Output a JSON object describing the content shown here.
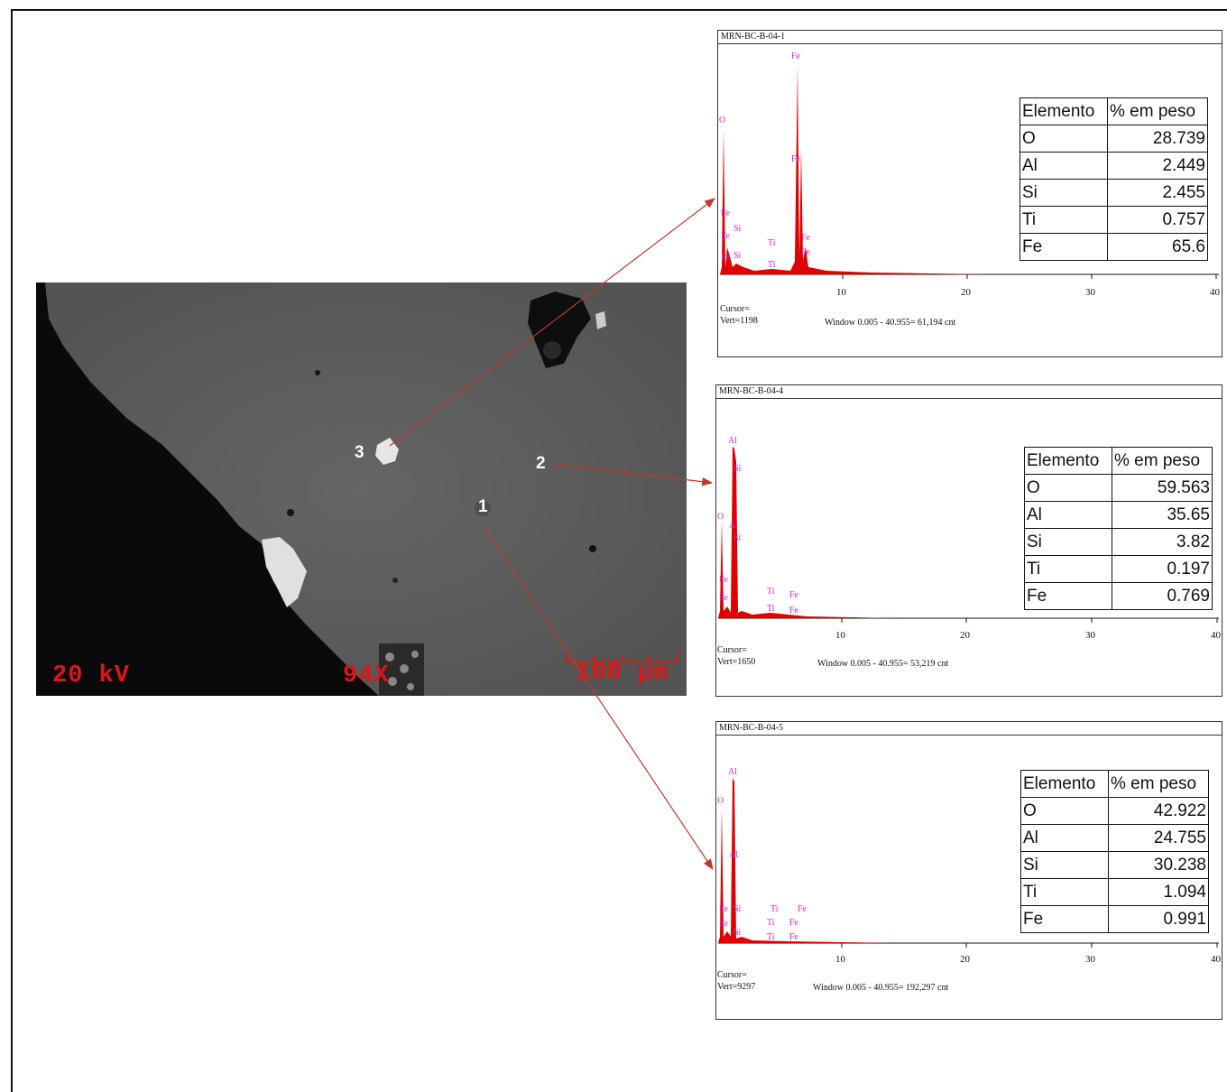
{
  "sem_image": {
    "voltage_label": "20 kV",
    "magnification_label": "94X",
    "scale_label": "100 μm",
    "points": [
      "1",
      "2",
      "3"
    ]
  },
  "colors": {
    "spectrum_fill": "#e00000",
    "peak_label": "#e020d0",
    "overlay_text": "#e01515",
    "arrow": "#c0392b"
  },
  "spectra": [
    {
      "title": "MRN-BC-B-04-1",
      "cursor": "Cursor=",
      "vert": "Vert=1198",
      "window": "Window 0.005 - 40.955=  61,194 cnt",
      "x_ticks": [
        "10",
        "20",
        "30",
        "40"
      ],
      "peaks": [
        "O",
        "Fe",
        "Fe",
        "Fe",
        "Fe",
        "Si",
        "Si",
        "Ti",
        "Ti",
        "Fe",
        "Fe",
        "Fe"
      ],
      "table": {
        "headers": [
          "Elemento",
          "% em peso"
        ],
        "rows": [
          [
            "O",
            "28.739"
          ],
          [
            "Al",
            "2.449"
          ],
          [
            "Si",
            "2.455"
          ],
          [
            "Ti",
            "0.757"
          ],
          [
            "Fe",
            "65.6"
          ]
        ]
      }
    },
    {
      "title": "MRN-BC-B-04-4",
      "cursor": "Cursor=",
      "vert": "Vert=1650",
      "window": "Window 0.005 - 40.955=  53,219 cnt",
      "x_ticks": [
        "10",
        "20",
        "30",
        "40"
      ],
      "peaks": [
        "Al",
        "Si",
        "O",
        "Al",
        "Si",
        "Fe",
        "Fe",
        "Ti",
        "Fe",
        "Ti",
        "Fe"
      ],
      "table": {
        "headers": [
          "Elemento",
          "% em peso"
        ],
        "rows": [
          [
            "O",
            "59.563"
          ],
          [
            "Al",
            "35.65"
          ],
          [
            "Si",
            "3.82"
          ],
          [
            "Ti",
            "0.197"
          ],
          [
            "Fe",
            "0.769"
          ]
        ]
      }
    },
    {
      "title": "MRN-BC-B-04-5",
      "cursor": "Cursor=",
      "vert": "Vert=9297",
      "window": "Window 0.005 - 40.955=  192,297 cnt",
      "x_ticks": [
        "10",
        "20",
        "30",
        "40"
      ],
      "peaks": [
        "Al",
        "O",
        "Al",
        "Fe",
        "Si",
        "Fe",
        "Si",
        "Ti",
        "Fe",
        "Ti",
        "Fe",
        "Ti",
        "Fe"
      ],
      "table": {
        "headers": [
          "Elemento",
          "% em peso"
        ],
        "rows": [
          [
            "O",
            "42.922"
          ],
          [
            "Al",
            "24.755"
          ],
          [
            "Si",
            "30.238"
          ],
          [
            "Ti",
            "1.094"
          ],
          [
            "Fe",
            "0.991"
          ]
        ]
      }
    }
  ]
}
